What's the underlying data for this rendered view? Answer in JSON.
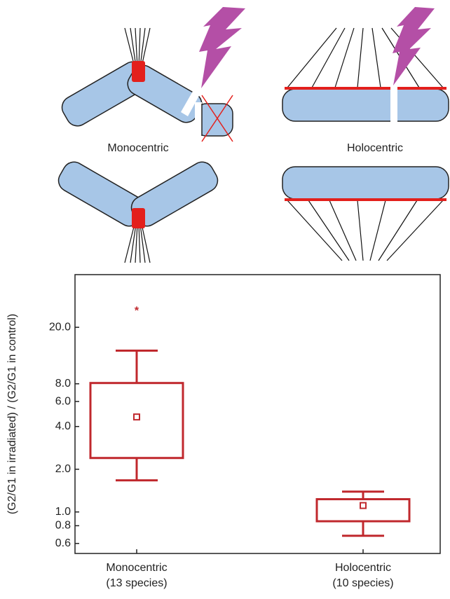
{
  "diagram": {
    "labels": [
      "Monocentric",
      "Holocentric"
    ]
  },
  "chart_data": {
    "type": "box",
    "y_label": "(G2/G1 in irradiated) / (G2/G1 in control)",
    "categories": [
      "Monocentric",
      "Holocentric"
    ],
    "category_notes": [
      "(13 species)",
      "(10 species)"
    ],
    "whisker_low": [
      1.67,
      0.68
    ],
    "q1": [
      2.4,
      0.86
    ],
    "mean": [
      4.67,
      1.11
    ],
    "q3": [
      8.1,
      1.23
    ],
    "whisker_high": [
      13.7,
      1.39
    ],
    "outliers": [
      [
        27.4
      ],
      []
    ],
    "color": "#c0282d",
    "log_y": true,
    "ylim": [
      0.51,
      47
    ],
    "yticks": [
      0.6,
      0.8,
      {
        "value": 1,
        "label": "1.0"
      },
      {
        "value": 2,
        "label": "2.0"
      },
      {
        "value": 4,
        "label": "4.0"
      },
      {
        "value": 6,
        "label": "6.0"
      },
      {
        "value": 8,
        "label": "8.0"
      },
      {
        "value": 20,
        "label": "20.0"
      }
    ]
  }
}
